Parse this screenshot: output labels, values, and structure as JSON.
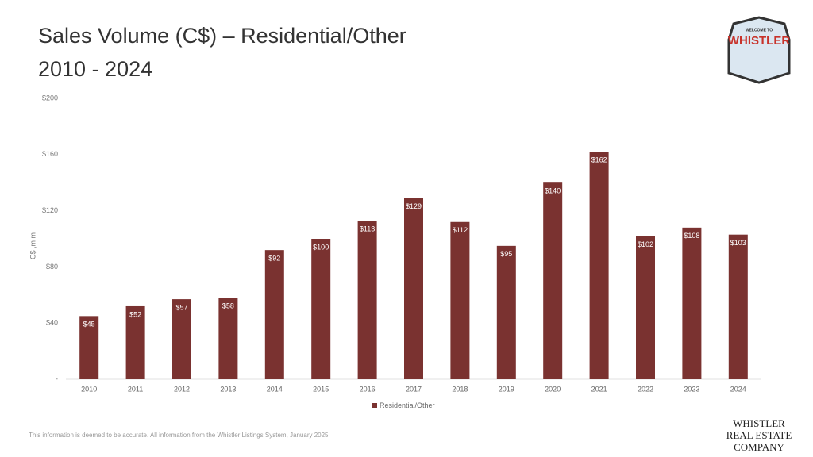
{
  "chart_data": {
    "type": "bar",
    "title": "Sales Volume (C$) – Residential/Other",
    "subtitle": "2010 - 2024",
    "y_label": "C$ ,m m",
    "categories": [
      "2010",
      "2011",
      "2012",
      "2013",
      "2014",
      "2015",
      "2016",
      "2017",
      "2018",
      "2019",
      "2020",
      "2021",
      "2022",
      "2023",
      "2024"
    ],
    "series": [
      {
        "name": "Residential/Other",
        "color": "#7a3230",
        "values": [
          45,
          52,
          57,
          58,
          92,
          100,
          113,
          129,
          112,
          95,
          140,
          162,
          102,
          108,
          103
        ],
        "value_labels": [
          "$45",
          "$52",
          "$57",
          "$58",
          "$92",
          "$100",
          "$113",
          "$129",
          "$112",
          "$95",
          "$140",
          "$162",
          "$102",
          "$108",
          "$103"
        ]
      }
    ],
    "ylim": [
      0,
      200
    ],
    "yticks": [
      {
        "value": 0,
        "label": "-"
      },
      {
        "value": 40,
        "label": "$40"
      },
      {
        "value": 80,
        "label": "$80"
      },
      {
        "value": 120,
        "label": "$120"
      },
      {
        "value": 160,
        "label": "$160"
      },
      {
        "value": 200,
        "label": "$200"
      }
    ],
    "grid": false,
    "legend": "bottom"
  },
  "footer_note": "This information is deemed to be accurate. All information from the Whistler Listings System, January 2025.",
  "logo": {
    "top": "WELCOME TO",
    "main": "WHISTLER"
  },
  "company": [
    "WHISTLER",
    "REAL ESTATE",
    "COMPANY"
  ]
}
